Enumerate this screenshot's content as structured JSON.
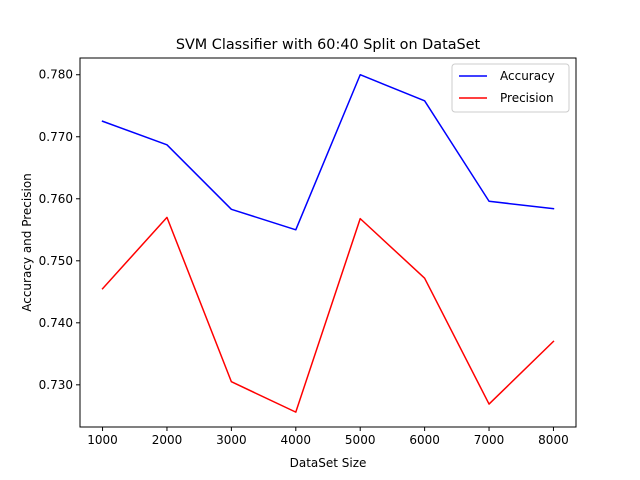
{
  "chart_data": {
    "type": "line",
    "title": "SVM Classifier with 60:40 Split on DataSet",
    "xlabel": "DataSet Size",
    "ylabel": "Accuracy and Precision",
    "x": [
      1000,
      2000,
      3000,
      4000,
      5000,
      6000,
      7000,
      8000
    ],
    "xticks": [
      "1000",
      "2000",
      "3000",
      "4000",
      "5000",
      "6000",
      "7000",
      "8000"
    ],
    "yticks": [
      "0.730",
      "0.740",
      "0.750",
      "0.760",
      "0.770",
      "0.780"
    ],
    "xlim": [
      650,
      8350
    ],
    "ylim": [
      0.7232,
      0.7827
    ],
    "grid": false,
    "legend_position": "upper right",
    "series": [
      {
        "name": "Accuracy",
        "color": "#0000ff",
        "values": [
          0.7725,
          0.7687,
          0.7583,
          0.755,
          0.78,
          0.7758,
          0.7596,
          0.7584
        ]
      },
      {
        "name": "Precision",
        "color": "#ff0000",
        "values": [
          0.7455,
          0.757,
          0.7305,
          0.7256,
          0.7568,
          0.7472,
          0.7269,
          0.737
        ]
      }
    ]
  }
}
